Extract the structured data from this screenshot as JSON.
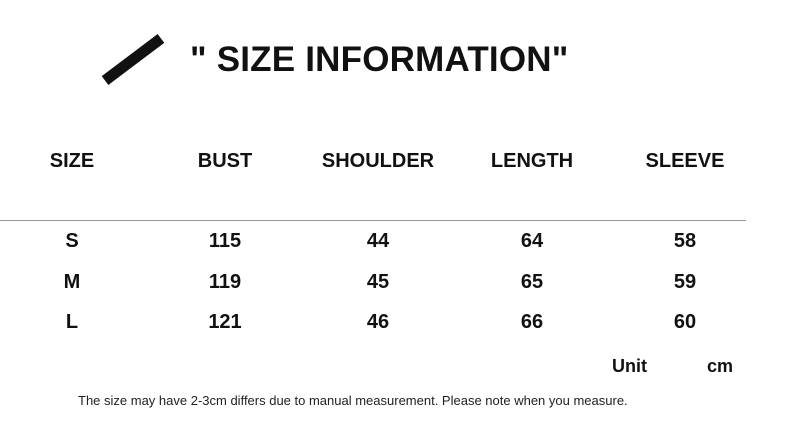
{
  "title": "\" SIZE INFORMATION\"",
  "table": {
    "headers": [
      "SIZE",
      "BUST",
      "SHOULDER",
      "LENGTH",
      "SLEEVE"
    ],
    "rows": [
      [
        "S",
        "115",
        "44",
        "64",
        "58"
      ],
      [
        "M",
        "119",
        "45",
        "65",
        "59"
      ],
      [
        "L",
        "121",
        "46",
        "66",
        "60"
      ]
    ]
  },
  "unit": {
    "label": "Unit",
    "value": "cm"
  },
  "note": "The size may have 2-3cm differs due to manual measurement. Please note when you measure."
}
